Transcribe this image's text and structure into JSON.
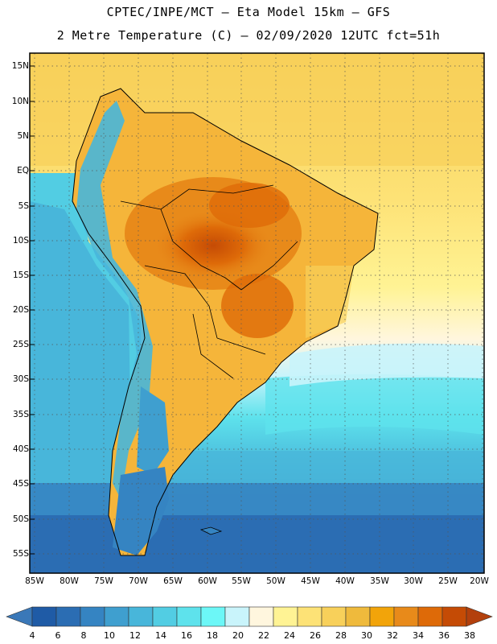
{
  "header": {
    "line1": "CPTEC/INPE/MCT –  Eta Model 15km – GFS",
    "line2": "2 Metre Temperature (C) – 02/09/2020 12UTC fct=51h"
  },
  "map": {
    "lat_labels": [
      "15N",
      "10N",
      "5N",
      "EQ",
      "5S",
      "10S",
      "15S",
      "20S",
      "25S",
      "30S",
      "35S",
      "40S",
      "45S",
      "50S",
      "55S"
    ],
    "lon_labels": [
      "85W",
      "80W",
      "75W",
      "70W",
      "65W",
      "60W",
      "55W",
      "50W",
      "45W",
      "40W",
      "35W",
      "30W",
      "25W",
      "20W"
    ]
  },
  "colorbar": {
    "labels": [
      "4",
      "6",
      "8",
      "10",
      "12",
      "14",
      "16",
      "18",
      "20",
      "22",
      "24",
      "26",
      "28",
      "30",
      "32",
      "34",
      "36",
      "38"
    ],
    "colors": [
      "#1f5ba6",
      "#2b6db3",
      "#3584c2",
      "#3f9fcf",
      "#48b6da",
      "#52cde3",
      "#5ee2ec",
      "#6cf7f7",
      "#c9f4fb",
      "#fff6de",
      "#fff394",
      "#fde276",
      "#f8d05a",
      "#efba3c",
      "#f2a40a",
      "#e88a1a",
      "#de6a08",
      "#c54b05"
    ],
    "end_low_color": "#3a78b8",
    "end_high_color": "#b3400c"
  }
}
